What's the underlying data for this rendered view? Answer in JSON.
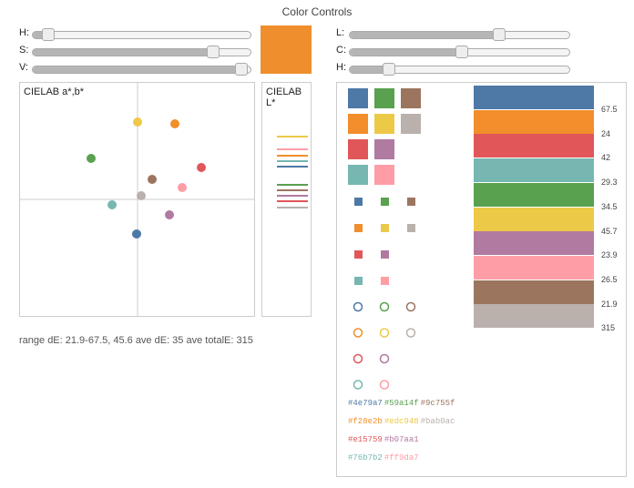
{
  "title": "Color Controls",
  "sliders_left": [
    {
      "label": "H:",
      "value": 0.07
    },
    {
      "label": "S:",
      "value": 0.83
    },
    {
      "label": "V:",
      "value": 0.96
    }
  ],
  "sliders_right": [
    {
      "label": "L:",
      "value": 0.68
    },
    {
      "label": "C:",
      "value": 0.51
    },
    {
      "label": "H:",
      "value": 0.18
    }
  ],
  "current_color": "#ef8e2d",
  "ab_panel_title": "CIELAB a*,b*",
  "l_panel_title": "CIELAB L*",
  "status_text": "range dE: 21.9-67.5, 45.6 ave dE: 35 ave totalE: 315",
  "palette": [
    "#4e79a7",
    "#59a14f",
    "#9c755f",
    "#f28e2b",
    "#edc948",
    "#bab0ac",
    "#e15759",
    "#b07aa1",
    "#76b7b2",
    "#ff9da7"
  ],
  "hex_lines": [
    [
      "#4e79a7",
      "#59a14f",
      "#9c755f"
    ],
    [
      "#f28e2b",
      "#edc948",
      "#bab0ac"
    ],
    [
      "#e15759",
      "#b07aa1"
    ],
    [
      "#76b7b2",
      "#ff9da7"
    ]
  ],
  "bars": [
    {
      "color": "#4e79a7",
      "label": "67.5"
    },
    {
      "color": "#f28e2b",
      "label": "24"
    },
    {
      "color": "#e15759",
      "label": "42"
    },
    {
      "color": "#76b7b2",
      "label": "29.3"
    },
    {
      "color": "#59a14f",
      "label": "34.5"
    },
    {
      "color": "#edc948",
      "label": "45.7"
    },
    {
      "color": "#b07aa1",
      "label": "23.9"
    },
    {
      "color": "#ff9da7",
      "label": "26.5"
    },
    {
      "color": "#9c755f",
      "label": "21.9"
    },
    {
      "color": "#bab0ac",
      "label": "315"
    }
  ]
}
